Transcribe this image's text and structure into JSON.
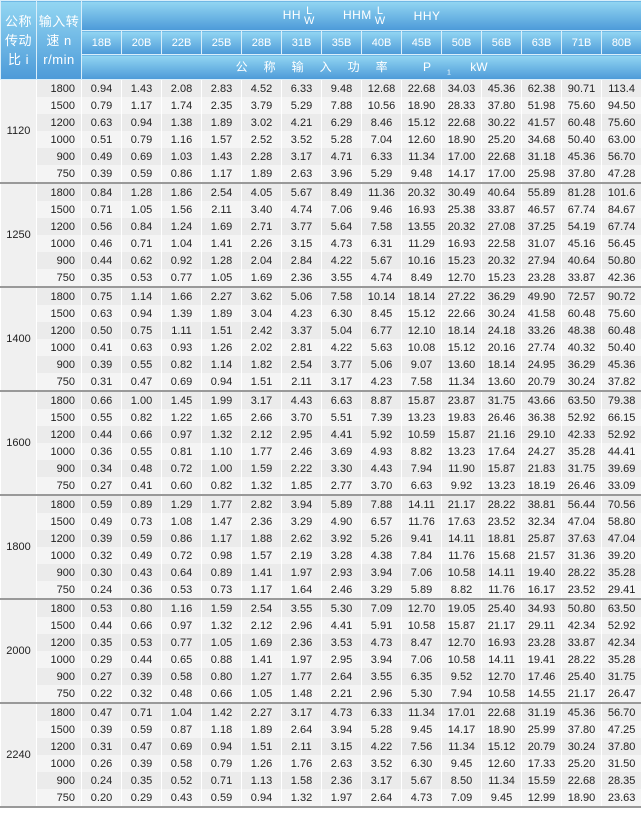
{
  "header": {
    "ratio_label": [
      "公称",
      "传动",
      "比 i"
    ],
    "speed_label": [
      "输入转",
      "速 n",
      "r/min"
    ],
    "series": [
      {
        "prefix": "HH",
        "top": "L",
        "bottom": "W"
      },
      {
        "prefix": "HHM",
        "top": "L",
        "bottom": "W"
      },
      {
        "prefix": "HHY",
        "top": "",
        "bottom": ""
      }
    ],
    "models": [
      "18B",
      "20B",
      "22B",
      "25B",
      "28B",
      "31B",
      "35B",
      "40B",
      "45B",
      "50B",
      "56B",
      "63B",
      "71B",
      "80B"
    ],
    "power_label": "公称输入功率",
    "power_symbol": "P",
    "power_sub": "1",
    "power_unit": "kW"
  },
  "colors": {
    "header_top": "#93d6f2",
    "header_bottom": "#4c9ad8",
    "row_odd": "#ebebeb",
    "row_even": "#f4f4f4"
  },
  "groups": [
    {
      "ratio": "1120",
      "rows": [
        {
          "speed": "1800",
          "values": [
            "0.94",
            "1.43",
            "2.08",
            "2.83",
            "4.52",
            "6.33",
            "9.48",
            "12.68",
            "22.68",
            "34.03",
            "45.36",
            "62.38",
            "90.71",
            "113.4"
          ]
        },
        {
          "speed": "1500",
          "values": [
            "0.79",
            "1.17",
            "1.74",
            "2.35",
            "3.79",
            "5.29",
            "7.88",
            "10.56",
            "18.90",
            "28.33",
            "37.80",
            "51.98",
            "75.60",
            "94.50"
          ]
        },
        {
          "speed": "1200",
          "values": [
            "0.63",
            "0.94",
            "1.38",
            "1.89",
            "3.02",
            "4.21",
            "6.29",
            "8.46",
            "15.12",
            "22.68",
            "30.22",
            "41.57",
            "60.48",
            "75.60"
          ]
        },
        {
          "speed": "1000",
          "values": [
            "0.51",
            "0.79",
            "1.16",
            "1.57",
            "2.52",
            "3.52",
            "5.28",
            "7.04",
            "12.60",
            "18.90",
            "25.20",
            "34.68",
            "50.40",
            "63.00"
          ]
        },
        {
          "speed": "900",
          "values": [
            "0.49",
            "0.69",
            "1.03",
            "1.43",
            "2.28",
            "3.17",
            "4.71",
            "6.33",
            "11.34",
            "17.00",
            "22.68",
            "31.18",
            "45.36",
            "56.70"
          ]
        },
        {
          "speed": "750",
          "values": [
            "0.39",
            "0.59",
            "0.86",
            "1.17",
            "1.89",
            "2.63",
            "3.96",
            "5.29",
            "9.48",
            "14.17",
            "17.00",
            "25.98",
            "37.80",
            "47.28"
          ]
        }
      ]
    },
    {
      "ratio": "1250",
      "rows": [
        {
          "speed": "1800",
          "values": [
            "0.84",
            "1.28",
            "1.86",
            "2.54",
            "4.05",
            "5.67",
            "8.49",
            "11.36",
            "20.32",
            "30.49",
            "40.64",
            "55.89",
            "81.28",
            "101.6"
          ]
        },
        {
          "speed": "1500",
          "values": [
            "0.71",
            "1.05",
            "1.56",
            "2.11",
            "3.40",
            "4.74",
            "7.06",
            "9.46",
            "16.93",
            "25.38",
            "33.87",
            "46.57",
            "67.74",
            "84.67"
          ]
        },
        {
          "speed": "1200",
          "values": [
            "0.56",
            "0.84",
            "1.24",
            "1.69",
            "2.71",
            "3.77",
            "5.64",
            "7.58",
            "13.55",
            "20.32",
            "27.08",
            "37.25",
            "54.19",
            "67.74"
          ]
        },
        {
          "speed": "1000",
          "values": [
            "0.46",
            "0.71",
            "1.04",
            "1.41",
            "2.26",
            "3.15",
            "4.73",
            "6.31",
            "11.29",
            "16.93",
            "22.58",
            "31.07",
            "45.16",
            "56.45"
          ]
        },
        {
          "speed": "900",
          "values": [
            "0.44",
            "0.62",
            "0.92",
            "1.28",
            "2.04",
            "2.84",
            "4.22",
            "5.67",
            "10.16",
            "15.23",
            "20.32",
            "27.94",
            "40.64",
            "50.80"
          ]
        },
        {
          "speed": "750",
          "values": [
            "0.35",
            "0.53",
            "0.77",
            "1.05",
            "1.69",
            "2.36",
            "3.55",
            "4.74",
            "8.49",
            "12.70",
            "15.23",
            "23.28",
            "33.87",
            "42.36"
          ]
        }
      ]
    },
    {
      "ratio": "1400",
      "rows": [
        {
          "speed": "1800",
          "values": [
            "0.75",
            "1.14",
            "1.66",
            "2.27",
            "3.62",
            "5.06",
            "7.58",
            "10.14",
            "18.14",
            "27.22",
            "36.29",
            "49.90",
            "72.57",
            "90.72"
          ]
        },
        {
          "speed": "1500",
          "values": [
            "0.63",
            "0.94",
            "1.39",
            "1.89",
            "3.04",
            "4.23",
            "6.30",
            "8.45",
            "15.12",
            "22.66",
            "30.24",
            "41.58",
            "60.48",
            "75.60"
          ]
        },
        {
          "speed": "1200",
          "values": [
            "0.50",
            "0.75",
            "1.11",
            "1.51",
            "2.42",
            "3.37",
            "5.04",
            "6.77",
            "12.10",
            "18.14",
            "24.18",
            "33.26",
            "48.38",
            "60.48"
          ]
        },
        {
          "speed": "1000",
          "values": [
            "0.41",
            "0.63",
            "0.93",
            "1.26",
            "2.02",
            "2.81",
            "4.22",
            "5.63",
            "10.08",
            "15.12",
            "20.16",
            "27.74",
            "40.32",
            "50.40"
          ]
        },
        {
          "speed": "900",
          "values": [
            "0.39",
            "0.55",
            "0.82",
            "1.14",
            "1.82",
            "2.54",
            "3.77",
            "5.06",
            "9.07",
            "13.60",
            "18.14",
            "24.95",
            "36.29",
            "45.36"
          ]
        },
        {
          "speed": "750",
          "values": [
            "0.31",
            "0.47",
            "0.69",
            "0.94",
            "1.51",
            "2.11",
            "3.17",
            "4.23",
            "7.58",
            "11.34",
            "13.60",
            "20.79",
            "30.24",
            "37.82"
          ]
        }
      ]
    },
    {
      "ratio": "1600",
      "rows": [
        {
          "speed": "1800",
          "values": [
            "0.66",
            "1.00",
            "1.45",
            "1.99",
            "3.17",
            "4.43",
            "6.63",
            "8.87",
            "15.87",
            "23.87",
            "31.75",
            "43.66",
            "63.50",
            "79.38"
          ]
        },
        {
          "speed": "1500",
          "values": [
            "0.55",
            "0.82",
            "1.22",
            "1.65",
            "2.66",
            "3.70",
            "5.51",
            "7.39",
            "13.23",
            "19.83",
            "26.46",
            "36.38",
            "52.92",
            "66.15"
          ]
        },
        {
          "speed": "1200",
          "values": [
            "0.44",
            "0.66",
            "0.97",
            "1.32",
            "2.12",
            "2.95",
            "4.41",
            "5.92",
            "10.59",
            "15.87",
            "21.16",
            "29.10",
            "42.33",
            "52.92"
          ]
        },
        {
          "speed": "1000",
          "values": [
            "0.36",
            "0.55",
            "0.81",
            "1.10",
            "1.77",
            "2.46",
            "3.69",
            "4.93",
            "8.82",
            "13.23",
            "17.64",
            "24.27",
            "35.28",
            "44.41"
          ]
        },
        {
          "speed": "900",
          "values": [
            "0.34",
            "0.48",
            "0.72",
            "1.00",
            "1.59",
            "2.22",
            "3.30",
            "4.43",
            "7.94",
            "11.90",
            "15.87",
            "21.83",
            "31.75",
            "39.69"
          ]
        },
        {
          "speed": "750",
          "values": [
            "0.27",
            "0.41",
            "0.60",
            "0.82",
            "1.32",
            "1.85",
            "2.77",
            "3.70",
            "6.63",
            "9.92",
            "13.23",
            "18.19",
            "26.46",
            "33.09"
          ]
        }
      ]
    },
    {
      "ratio": "1800",
      "rows": [
        {
          "speed": "1800",
          "values": [
            "0.59",
            "0.89",
            "1.29",
            "1.77",
            "2.82",
            "3.94",
            "5.89",
            "7.88",
            "14.11",
            "21.17",
            "28.22",
            "38.81",
            "56.44",
            "70.56"
          ]
        },
        {
          "speed": "1500",
          "values": [
            "0.49",
            "0.73",
            "1.08",
            "1.47",
            "2.36",
            "3.29",
            "4.90",
            "6.57",
            "11.76",
            "17.63",
            "23.52",
            "32.34",
            "47.04",
            "58.80"
          ]
        },
        {
          "speed": "1200",
          "values": [
            "0.39",
            "0.59",
            "0.86",
            "1.17",
            "1.88",
            "2.62",
            "3.92",
            "5.26",
            "9.41",
            "14.11",
            "18.81",
            "25.87",
            "37.63",
            "47.04"
          ]
        },
        {
          "speed": "1000",
          "values": [
            "0.32",
            "0.49",
            "0.72",
            "0.98",
            "1.57",
            "2.19",
            "3.28",
            "4.38",
            "7.84",
            "11.76",
            "15.68",
            "21.57",
            "31.36",
            "39.20"
          ]
        },
        {
          "speed": "900",
          "values": [
            "0.30",
            "0.43",
            "0.64",
            "0.89",
            "1.41",
            "1.97",
            "2.93",
            "3.94",
            "7.06",
            "10.58",
            "14.11",
            "19.40",
            "28.22",
            "35.28"
          ]
        },
        {
          "speed": "750",
          "values": [
            "0.24",
            "0.36",
            "0.53",
            "0.73",
            "1.17",
            "1.64",
            "2.46",
            "3.29",
            "5.89",
            "8.82",
            "11.76",
            "16.17",
            "23.52",
            "29.41"
          ]
        }
      ]
    },
    {
      "ratio": "2000",
      "rows": [
        {
          "speed": "1800",
          "values": [
            "0.53",
            "0.80",
            "1.16",
            "1.59",
            "2.54",
            "3.55",
            "5.30",
            "7.09",
            "12.70",
            "19.05",
            "25.40",
            "34.93",
            "50.80",
            "63.50"
          ]
        },
        {
          "speed": "1500",
          "values": [
            "0.44",
            "0.66",
            "0.97",
            "1.32",
            "2.12",
            "2.96",
            "4.41",
            "5.91",
            "10.58",
            "15.87",
            "21.17",
            "29.11",
            "42.34",
            "52.92"
          ]
        },
        {
          "speed": "1200",
          "values": [
            "0.35",
            "0.53",
            "0.77",
            "1.05",
            "1.69",
            "2.36",
            "3.53",
            "4.73",
            "8.47",
            "12.70",
            "16.93",
            "23.28",
            "33.87",
            "42.34"
          ]
        },
        {
          "speed": "1000",
          "values": [
            "0.29",
            "0.44",
            "0.65",
            "0.88",
            "1.41",
            "1.97",
            "2.95",
            "3.94",
            "7.06",
            "10.58",
            "14.11",
            "19.41",
            "28.22",
            "35.28"
          ]
        },
        {
          "speed": "900",
          "values": [
            "0.27",
            "0.39",
            "0.58",
            "0.80",
            "1.27",
            "1.77",
            "2.64",
            "3.55",
            "6.35",
            "9.52",
            "12.70",
            "17.46",
            "25.40",
            "31.75"
          ]
        },
        {
          "speed": "750",
          "values": [
            "0.22",
            "0.32",
            "0.48",
            "0.66",
            "1.05",
            "1.48",
            "2.21",
            "2.96",
            "5.30",
            "7.94",
            "10.58",
            "14.55",
            "21.17",
            "26.47"
          ]
        }
      ]
    },
    {
      "ratio": "2240",
      "rows": [
        {
          "speed": "1800",
          "values": [
            "0.47",
            "0.71",
            "1.04",
            "1.42",
            "2.27",
            "3.17",
            "4.73",
            "6.33",
            "11.34",
            "17.01",
            "22.68",
            "31.19",
            "45.36",
            "56.70"
          ]
        },
        {
          "speed": "1500",
          "values": [
            "0.39",
            "0.59",
            "0.87",
            "1.18",
            "1.89",
            "2.64",
            "3.94",
            "5.28",
            "9.45",
            "14.17",
            "18.90",
            "25.99",
            "37.80",
            "47.25"
          ]
        },
        {
          "speed": "1200",
          "values": [
            "0.31",
            "0.47",
            "0.69",
            "0.94",
            "1.51",
            "2.11",
            "3.15",
            "4.22",
            "7.56",
            "11.34",
            "15.12",
            "20.79",
            "30.24",
            "37.80"
          ]
        },
        {
          "speed": "1000",
          "values": [
            "0.26",
            "0.39",
            "0.58",
            "0.79",
            "1.26",
            "1.76",
            "2.63",
            "3.52",
            "6.30",
            "9.45",
            "12.60",
            "17.33",
            "25.20",
            "31.50"
          ]
        },
        {
          "speed": "900",
          "values": [
            "0.24",
            "0.35",
            "0.52",
            "0.71",
            "1.13",
            "1.58",
            "2.36",
            "3.17",
            "5.67",
            "8.50",
            "11.34",
            "15.59",
            "22.68",
            "28.35"
          ]
        },
        {
          "speed": "750",
          "values": [
            "0.20",
            "0.29",
            "0.43",
            "0.59",
            "0.94",
            "1.32",
            "1.97",
            "2.64",
            "4.73",
            "7.09",
            "9.45",
            "12.99",
            "18.90",
            "23.63"
          ]
        }
      ]
    }
  ]
}
